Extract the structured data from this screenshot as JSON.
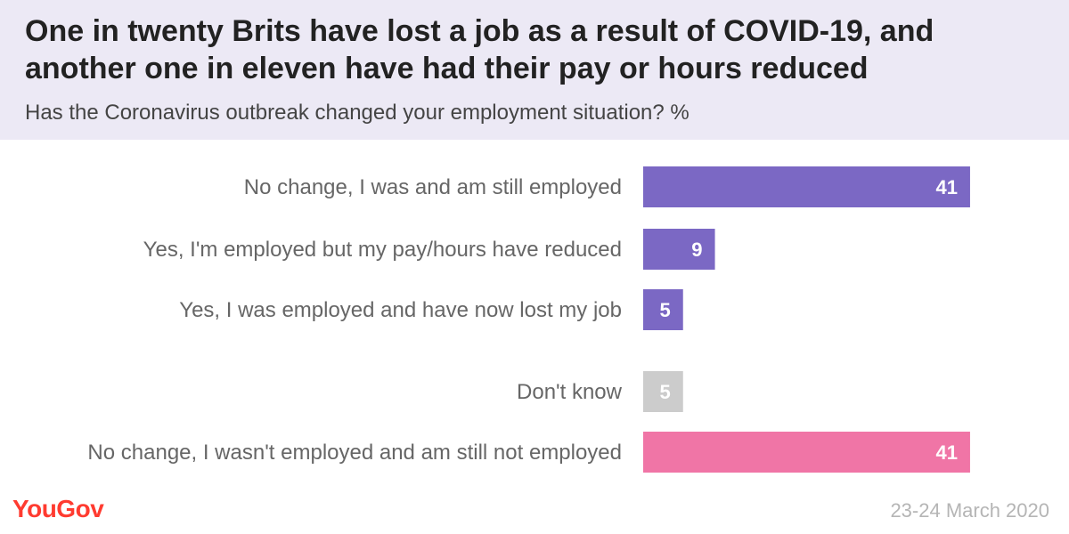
{
  "header": {
    "title": "One in twenty Brits have lost a job as a result of COVID-19, and another one in eleven have had their pay or hours reduced",
    "subtitle": "Has the Coronavirus outbreak changed your employment situation? %"
  },
  "footer": {
    "brand": "YouGov",
    "date": "23-24 March 2020"
  },
  "colors": {
    "employed": "#7b68c4",
    "dont_know": "#cccccc",
    "not_employed": "#f075a6",
    "header_background": "#ece9f5",
    "brand": "#ff3b30"
  },
  "chart_data": {
    "type": "bar",
    "orientation": "horizontal",
    "categories": [
      "No change, I was and am still employed",
      "Yes, I'm employed but my pay/hours have reduced",
      "Yes, I was employed and have now lost my job",
      "Don't know",
      "No change, I wasn't employed and am still not employed"
    ],
    "values": [
      41,
      9,
      5,
      5,
      41
    ],
    "bar_colors": [
      "#7b68c4",
      "#7b68c4",
      "#7b68c4",
      "#cccccc",
      "#f075a6"
    ],
    "title": "One in twenty Brits have lost a job as a result of COVID-19, and another one in eleven have had their pay or hours reduced",
    "subtitle": "Has the Coronavirus outbreak changed your employment situation? %",
    "xlabel": "",
    "ylabel": "",
    "grid": false,
    "data_labels": true
  }
}
